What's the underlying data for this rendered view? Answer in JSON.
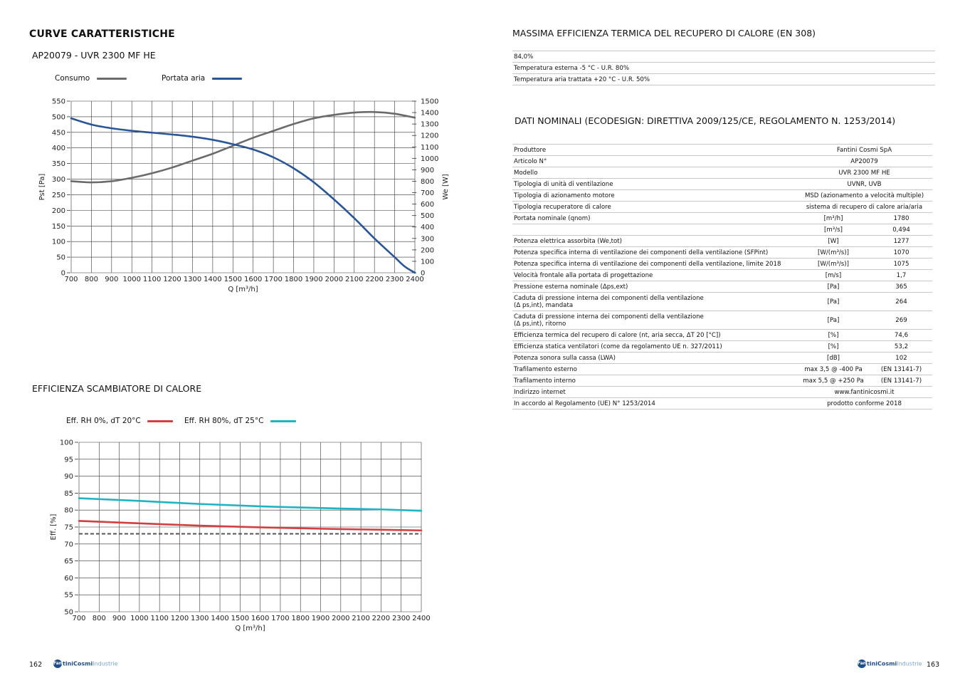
{
  "left": {
    "section_title": "CURVE CARATTERISTICHE",
    "model_title": "AP20079 - UVR 2300 MF HE",
    "eff_title": "EFFICIENZA SCAMBIATORE DI CALORE",
    "page_number": "162"
  },
  "right": {
    "eff_section_title": "MASSIMA EFFICIENZA TERMICA DEL RECUPERO DI CALORE (EN 308)",
    "eff_rows": [
      "84,0%",
      "Temperatura esterna -5 °C - U.R. 80%",
      "Temperatura aria trattata +20 °C - U.R. 50%"
    ],
    "nominal_title": "DATI NOMINALI (ECODESIGN: DIRETTIVA 2009/125/CE, REGOLAMENTO N. 1253/2014)",
    "page_number": "163"
  },
  "logo": {
    "brand_a": "Fan",
    "brand_b": "tiniCosmi",
    "brand_c": "Industrie"
  },
  "spec_rows": [
    {
      "label": "Produttore",
      "full": "Fantini Cosmi SpA"
    },
    {
      "label": "Articolo N°",
      "full": "AP20079"
    },
    {
      "label": "Modello",
      "full": "UVR 2300 MF HE"
    },
    {
      "label": "Tipologia di unità di ventilazione",
      "full": "UVNR, UVB"
    },
    {
      "label": "Tipologia di azionamento motore",
      "full": "MSD (azionamento a velocità multiple)"
    },
    {
      "label": "Tipologia recuperatore di calore",
      "full": "sistema di recupero di calore aria/aria"
    },
    {
      "label": "Portata nominale (qnom)",
      "unit": "[m³/h]",
      "value": "1780"
    },
    {
      "label": "",
      "unit": "[m³/s]",
      "value": "0,494"
    },
    {
      "label": "Potenza elettrica assorbita (We,tot)",
      "unit": "[W]",
      "value": "1277"
    },
    {
      "label": "Potenza specifica interna di ventilazione dei componenti della ventilazione (SFPint)",
      "unit": "[W/(m³/s)]",
      "value": "1070"
    },
    {
      "label": "Potenza specifica interna di ventilazione dei componenti della ventilazione, limite 2018",
      "unit": "[W/(m³/s)]",
      "value": "1075"
    },
    {
      "label": "Velocità frontale alla portata di progettazione",
      "unit": "[m/s]",
      "value": "1,7"
    },
    {
      "label": "Pressione esterna nominale (Δps,ext)",
      "unit": "[Pa]",
      "value": "365"
    },
    {
      "label": "Caduta di pressione interna dei componenti della ventilazione",
      "label2": "(Δ ps,int), mandata",
      "unit": "[Pa]",
      "value": "264",
      "tall": true
    },
    {
      "label": "Caduta di pressione interna dei componenti della ventilazione",
      "label2": "(Δ ps,int), ritorno",
      "unit": "[Pa]",
      "value": "269",
      "tall": true
    },
    {
      "label": "Efficienza termica del recupero di calore (nt, aria secca, ΔT 20 [°C])",
      "unit": "[%]",
      "value": "74,6"
    },
    {
      "label": "Efficienza statica ventilatori (come da regolamento UE n. 327/2011)",
      "unit": "[%]",
      "value": "53,2"
    },
    {
      "label": "Potenza sonora sulla cassa (LWA)",
      "unit": "[dB]",
      "value": "102"
    },
    {
      "label": "Trafilamento esterno",
      "unit": "max 3,5 @ -400 Pa",
      "value": "(EN 13141-7)"
    },
    {
      "label": "Trafilamento interno",
      "unit": "max 5,5 @ +250 Pa",
      "value": "(EN 13141-7)"
    },
    {
      "label": "Indirizzo internet",
      "full": "www.fantinicosmi.it"
    },
    {
      "label": "In accordo al Regolamento (UE) N° 1253/2014",
      "full": "prodotto conforme 2018"
    }
  ],
  "chart_data": [
    {
      "type": "line",
      "xlabel": "Q [m³/h]",
      "ylabel": "Pst [Pa]",
      "y2label": "We [W]",
      "xlim": [
        700,
        2400
      ],
      "ylim": [
        0,
        550
      ],
      "y2lim": [
        0,
        1500
      ],
      "x_ticks": [
        700,
        800,
        900,
        1000,
        1100,
        1200,
        1300,
        1400,
        1500,
        1600,
        1700,
        1800,
        1900,
        2000,
        2100,
        2200,
        2300,
        2400
      ],
      "y_ticks": [
        0,
        50,
        100,
        150,
        200,
        250,
        300,
        350,
        400,
        450,
        500,
        550
      ],
      "y2_ticks": [
        0,
        100,
        200,
        300,
        400,
        500,
        600,
        700,
        800,
        900,
        1000,
        1100,
        1200,
        1300,
        1400,
        1500
      ],
      "grid": true,
      "legend_position": "top",
      "series": [
        {
          "name": "Consumo",
          "axis": "right",
          "color": "#6b6b6b",
          "x": [
            700,
            800,
            900,
            1000,
            1100,
            1200,
            1300,
            1400,
            1500,
            1600,
            1700,
            1800,
            1900,
            2000,
            2100,
            2200,
            2300,
            2400
          ],
          "y": [
            800,
            790,
            800,
            830,
            870,
            920,
            980,
            1040,
            1110,
            1180,
            1240,
            1300,
            1350,
            1380,
            1400,
            1405,
            1390,
            1355
          ]
        },
        {
          "name": "Portata aria",
          "axis": "left",
          "color": "#2a5597",
          "x": [
            700,
            800,
            900,
            1000,
            1100,
            1200,
            1300,
            1400,
            1500,
            1600,
            1700,
            1800,
            1900,
            2000,
            2100,
            2200,
            2300,
            2350,
            2400
          ],
          "y": [
            495,
            475,
            463,
            455,
            449,
            443,
            436,
            426,
            412,
            395,
            370,
            335,
            290,
            235,
            175,
            110,
            50,
            20,
            0
          ]
        }
      ]
    },
    {
      "type": "line",
      "xlabel": "Q [m³/h]",
      "ylabel": "Eff. [%]",
      "xlim": [
        700,
        2400
      ],
      "ylim": [
        50,
        100
      ],
      "x_ticks": [
        700,
        800,
        900,
        1000,
        1100,
        1200,
        1300,
        1400,
        1500,
        1600,
        1700,
        1800,
        1900,
        2000,
        2100,
        2200,
        2300,
        2400
      ],
      "y_ticks": [
        50,
        55,
        60,
        65,
        70,
        75,
        80,
        85,
        90,
        95,
        100
      ],
      "grid": true,
      "legend_position": "top",
      "reference_line": {
        "y": 73,
        "style": "dashed",
        "color": "#555555"
      },
      "series": [
        {
          "name": "Eff. RH 0%, dT 20°C",
          "color": "#d04040",
          "x": [
            700,
            1000,
            1300,
            1600,
            1900,
            2200,
            2400
          ],
          "y": [
            76.8,
            76.1,
            75.4,
            74.9,
            74.5,
            74.2,
            74.0
          ]
        },
        {
          "name": "Eff. RH 80%, dT 25°C",
          "color": "#1fb3c4",
          "x": [
            700,
            1000,
            1300,
            1600,
            1900,
            2200,
            2400
          ],
          "y": [
            83.5,
            82.7,
            81.8,
            81.1,
            80.6,
            80.2,
            79.8
          ]
        }
      ]
    }
  ]
}
